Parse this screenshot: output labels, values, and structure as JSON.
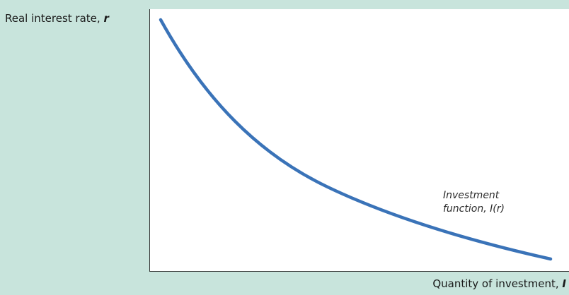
{
  "y_axis": {
    "label": "Real interest rate, ",
    "variable": "r"
  },
  "x_axis": {
    "label": "Quantity of investment, ",
    "variable": "I"
  },
  "curve": {
    "label_line1": "Investment",
    "label_line2_prefix": "function, I(",
    "label_line2_var": "r",
    "label_line2_suffix": ")",
    "color": "#3a73b8"
  },
  "colors": {
    "background": "#c8e4dc",
    "plot_area": "#ffffff",
    "axis": "#333333"
  }
}
